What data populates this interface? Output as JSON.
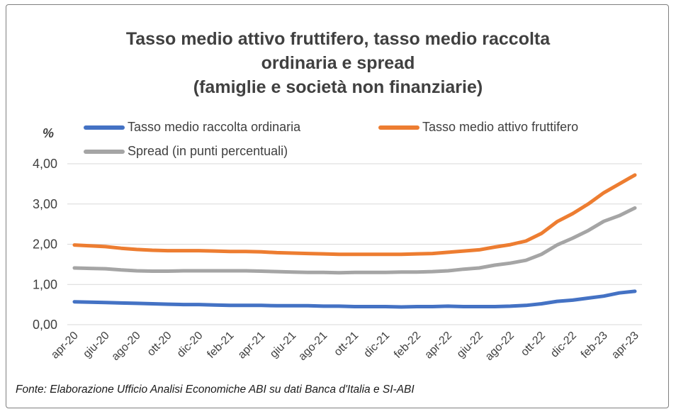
{
  "chart_data": {
    "type": "line",
    "title": [
      "Tasso medio attivo fruttifero, tasso medio raccolta",
      "ordinaria e spread",
      "(famiglie e società non finanziarie)"
    ],
    "ylabel": "%",
    "ylim": [
      0,
      4
    ],
    "yticks": [
      "0,00",
      "1,00",
      "2,00",
      "3,00",
      "4,00"
    ],
    "ytick_values": [
      0,
      1,
      2,
      3,
      4
    ],
    "grid": true,
    "legend_position": "top",
    "categories": [
      "apr-20",
      "mag-20",
      "giu-20",
      "lug-20",
      "ago-20",
      "set-20",
      "ott-20",
      "nov-20",
      "dic-20",
      "gen-21",
      "feb-21",
      "mar-21",
      "apr-21",
      "mag-21",
      "giu-21",
      "lug-21",
      "ago-21",
      "set-21",
      "ott-21",
      "nov-21",
      "dic-21",
      "gen-22",
      "feb-22",
      "mar-22",
      "apr-22",
      "mag-22",
      "giu-22",
      "lug-22",
      "ago-22",
      "set-22",
      "ott-22",
      "nov-22",
      "dic-22",
      "gen-23",
      "feb-23",
      "mar-23",
      "apr-23"
    ],
    "xtick_labels": [
      "apr-20",
      "giu-20",
      "ago-20",
      "ott-20",
      "dic-20",
      "feb-21",
      "apr-21",
      "giu-21",
      "ago-21",
      "ott-21",
      "dic-21",
      "feb-22",
      "apr-22",
      "giu-22",
      "ago-22",
      "ott-22",
      "dic-22",
      "feb-23",
      "apr-23"
    ],
    "series": [
      {
        "name": "Tasso medio raccolta ordinaria",
        "color": "#4472c4",
        "values": [
          0.57,
          0.56,
          0.55,
          0.54,
          0.53,
          0.52,
          0.51,
          0.5,
          0.5,
          0.49,
          0.48,
          0.48,
          0.48,
          0.47,
          0.47,
          0.47,
          0.46,
          0.46,
          0.45,
          0.45,
          0.45,
          0.44,
          0.45,
          0.45,
          0.46,
          0.45,
          0.45,
          0.45,
          0.46,
          0.48,
          0.52,
          0.58,
          0.61,
          0.66,
          0.71,
          0.79,
          0.83
        ]
      },
      {
        "name": "Tasso medio attivo fruttifero",
        "color": "#ed7d31",
        "values": [
          1.98,
          1.96,
          1.94,
          1.9,
          1.87,
          1.85,
          1.84,
          1.84,
          1.84,
          1.83,
          1.82,
          1.82,
          1.81,
          1.79,
          1.78,
          1.77,
          1.76,
          1.75,
          1.75,
          1.75,
          1.75,
          1.75,
          1.76,
          1.77,
          1.8,
          1.83,
          1.86,
          1.93,
          1.99,
          2.08,
          2.27,
          2.56,
          2.76,
          3.0,
          3.28,
          3.5,
          3.72
        ]
      },
      {
        "name": "Spread (in punti percentuali)",
        "color": "#a5a5a5",
        "values": [
          1.41,
          1.4,
          1.39,
          1.36,
          1.34,
          1.33,
          1.33,
          1.34,
          1.34,
          1.34,
          1.34,
          1.34,
          1.33,
          1.32,
          1.31,
          1.3,
          1.3,
          1.29,
          1.3,
          1.3,
          1.3,
          1.31,
          1.31,
          1.32,
          1.34,
          1.38,
          1.41,
          1.48,
          1.53,
          1.6,
          1.75,
          1.98,
          2.15,
          2.34,
          2.57,
          2.71,
          2.9
        ]
      }
    ]
  },
  "source": "Fonte: Elaborazione Ufficio Analisi Economiche ABI su dati Banca d'Italia e SI-ABI"
}
